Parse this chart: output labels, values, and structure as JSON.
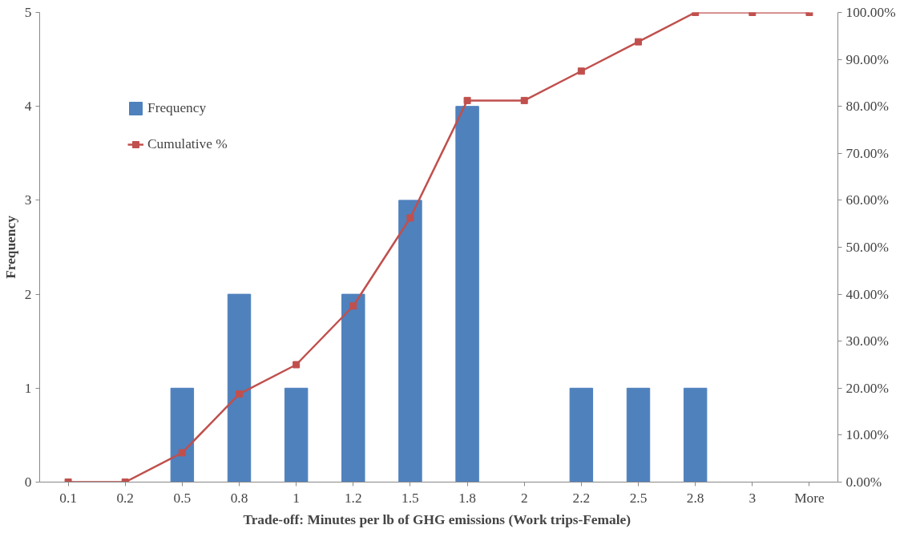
{
  "chart_data": {
    "type": "bar",
    "xlabel": "Trade-off: Minutes per  lb of GHG emissions (Work trips-Female)",
    "ylabel": "Frequency",
    "categories": [
      "0.1",
      "0.2",
      "0.5",
      "0.8",
      "1",
      "1.2",
      "1.5",
      "1.8",
      "2",
      "2.2",
      "2.5",
      "2.8",
      "3",
      "More"
    ],
    "series": [
      {
        "name": "Frequency",
        "color": "#4f81bd",
        "values": [
          0,
          0,
          1,
          2,
          1,
          2,
          3,
          4,
          0,
          1,
          1,
          1,
          0,
          0
        ]
      },
      {
        "name": "Cumulative %",
        "type": "line",
        "axis": "y2",
        "color": "#c0504d",
        "marker": "square",
        "values": [
          0,
          0,
          6.25,
          18.75,
          25,
          37.5,
          56.25,
          81.25,
          81.25,
          87.5,
          93.75,
          100,
          100,
          100
        ]
      }
    ],
    "ylim": [
      0,
      5
    ],
    "yticks": [
      0,
      1,
      2,
      3,
      4,
      5
    ],
    "y2lim": [
      0,
      100
    ],
    "y2ticks": [
      {
        "value": 0,
        "label": "0.00%"
      },
      {
        "value": 10,
        "label": "10.00%"
      },
      {
        "value": 20,
        "label": "20.00%"
      },
      {
        "value": 30,
        "label": "30.00%"
      },
      {
        "value": 40,
        "label": "40.00%"
      },
      {
        "value": 50,
        "label": "50.00%"
      },
      {
        "value": 60,
        "label": "60.00%"
      },
      {
        "value": 70,
        "label": "70.00%"
      },
      {
        "value": 80,
        "label": "80.00%"
      },
      {
        "value": 90,
        "label": "90.00%"
      },
      {
        "value": 100,
        "label": "100.00%"
      }
    ],
    "grid": false,
    "legend": "top left"
  }
}
